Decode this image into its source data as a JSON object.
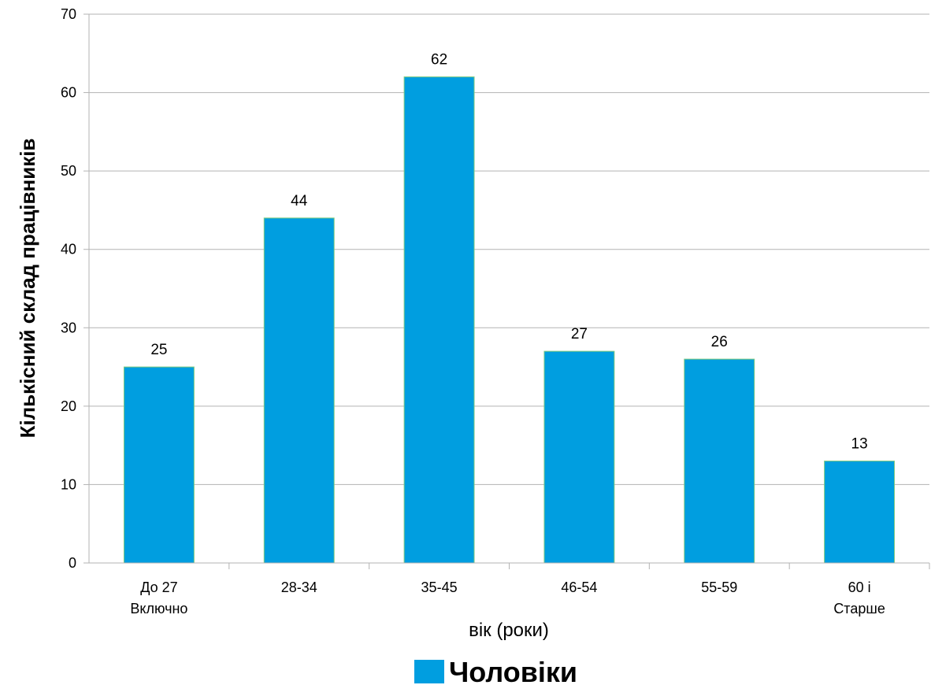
{
  "chart_data": {
    "type": "bar",
    "categories": [
      [
        "До 27",
        "Включно"
      ],
      [
        "28-34"
      ],
      [
        "35-45"
      ],
      [
        "46-54"
      ],
      [
        "55-59"
      ],
      [
        "60 і",
        "Старше"
      ]
    ],
    "series": [
      {
        "name": "Чоловіки",
        "values": [
          25,
          44,
          62,
          27,
          26,
          13
        ]
      }
    ],
    "xlabel": "вік (роки)",
    "ylabel": "Кількісний склад працівників",
    "ylim": [
      0,
      70
    ],
    "yticks": [
      0,
      10,
      20,
      30,
      40,
      50,
      60,
      70
    ],
    "grid": true,
    "data_labels": true,
    "legend_position": "bottom",
    "colors": {
      "bar": "#009ee0",
      "bar_edge": "#7fc97f",
      "grid": "#b3b3b3",
      "axis": "#b3b3b3"
    }
  }
}
